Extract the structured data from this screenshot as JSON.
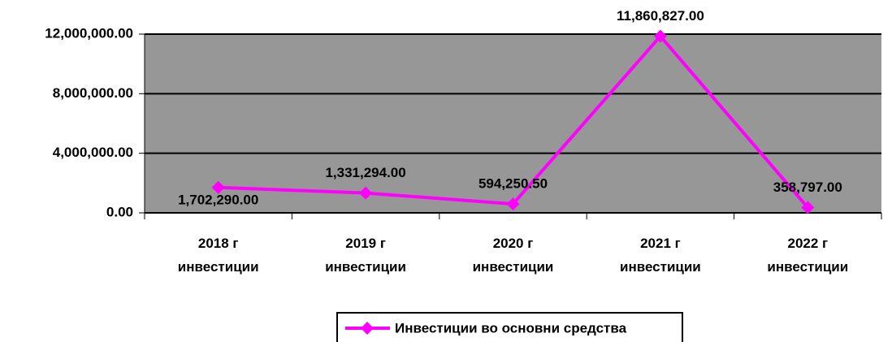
{
  "chart_data": {
    "type": "line",
    "categories": [
      "2018 г\nинвестиции",
      "2019 г\nинвестиции",
      "2020 г\nинвестиции",
      "2021 г\nинвестиции",
      "2022 г\nинвестиции"
    ],
    "series": [
      {
        "name": "Инвестиции во основни средства",
        "color": "#ff00ff",
        "values": [
          1702290,
          1331294,
          594250.5,
          11860827,
          358797
        ],
        "value_labels": [
          "1,702,290.00",
          "1,331,294.00",
          "594,250.50",
          "11,860,827.00",
          "358,797.00"
        ]
      }
    ],
    "ylim": [
      0,
      12000000
    ],
    "yticks": [
      {
        "value": 0,
        "label": "0.00"
      },
      {
        "value": 4000000,
        "label": "4,000,000.00"
      },
      {
        "value": 8000000,
        "label": "8,000,000.00"
      },
      {
        "value": 12000000,
        "label": "12,000,000.00"
      }
    ],
    "grid": true,
    "legend": "bottom"
  }
}
